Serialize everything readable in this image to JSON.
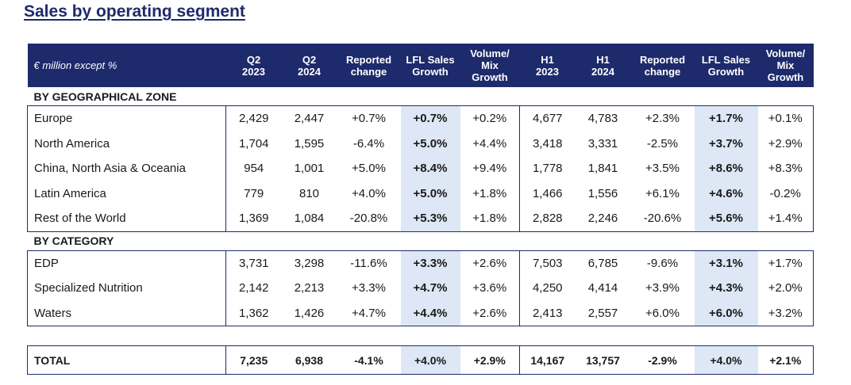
{
  "title": "Sales by operating segment",
  "header": {
    "unit_label": "€ million except %",
    "columns": [
      [
        "Q2",
        "2023"
      ],
      [
        "Q2",
        "2024"
      ],
      [
        "Reported",
        "change"
      ],
      [
        "LFL Sales",
        "Growth"
      ],
      [
        "Volume/",
        "Mix",
        "Growth"
      ],
      [
        "H1",
        "2023"
      ],
      [
        "H1",
        "2024"
      ],
      [
        "Reported",
        "change"
      ],
      [
        "LFL Sales",
        "Growth"
      ],
      [
        "Volume/",
        "Mix",
        "Growth"
      ]
    ]
  },
  "sections": [
    {
      "label": "BY GEOGRAPHICAL ZONE",
      "rows": [
        {
          "name": "Europe",
          "values": [
            "2,429",
            "2,447",
            "+0.7%",
            "+0.7%",
            "+0.2%",
            "4,677",
            "4,783",
            "+2.3%",
            "+1.7%",
            "+0.1%"
          ]
        },
        {
          "name": "North America",
          "values": [
            "1,704",
            "1,595",
            "-6.4%",
            "+5.0%",
            "+4.4%",
            "3,418",
            "3,331",
            "-2.5%",
            "+3.7%",
            "+2.9%"
          ]
        },
        {
          "name": "China, North Asia & Oceania",
          "values": [
            "954",
            "1,001",
            "+5.0%",
            "+8.4%",
            "+9.4%",
            "1,778",
            "1,841",
            "+3.5%",
            "+8.6%",
            "+8.3%"
          ]
        },
        {
          "name": "Latin America",
          "values": [
            "779",
            "810",
            "+4.0%",
            "+5.0%",
            "+1.8%",
            "1,466",
            "1,556",
            "+6.1%",
            "+4.6%",
            "-0.2%"
          ]
        },
        {
          "name": "Rest of the World",
          "values": [
            "1,369",
            "1,084",
            "-20.8%",
            "+5.3%",
            "+1.8%",
            "2,828",
            "2,246",
            "-20.6%",
            "+5.6%",
            "+1.4%"
          ]
        }
      ]
    },
    {
      "label": "BY CATEGORY",
      "rows": [
        {
          "name": "EDP",
          "values": [
            "3,731",
            "3,298",
            "-11.6%",
            "+3.3%",
            "+2.6%",
            "7,503",
            "6,785",
            "-9.6%",
            "+3.1%",
            "+1.7%"
          ]
        },
        {
          "name": "Specialized Nutrition",
          "values": [
            "2,142",
            "2,213",
            "+3.3%",
            "+4.7%",
            "+3.6%",
            "4,250",
            "4,414",
            "+3.9%",
            "+4.3%",
            "+2.0%"
          ]
        },
        {
          "name": "Waters",
          "values": [
            "1,362",
            "1,426",
            "+4.7%",
            "+4.4%",
            "+2.6%",
            "2,413",
            "2,557",
            "+6.0%",
            "+6.0%",
            "+3.2%"
          ]
        }
      ]
    }
  ],
  "total": {
    "name": "TOTAL",
    "values": [
      "7,235",
      "6,938",
      "-4.1%",
      "+4.0%",
      "+2.9%",
      "14,167",
      "13,757",
      "-2.9%",
      "+4.0%",
      "+2.1%"
    ]
  },
  "colors": {
    "header_bg": "#1d2a6c",
    "highlight_bg": "#dde7f5",
    "border": "#1d2a6c",
    "title": "#1f2a6b"
  }
}
